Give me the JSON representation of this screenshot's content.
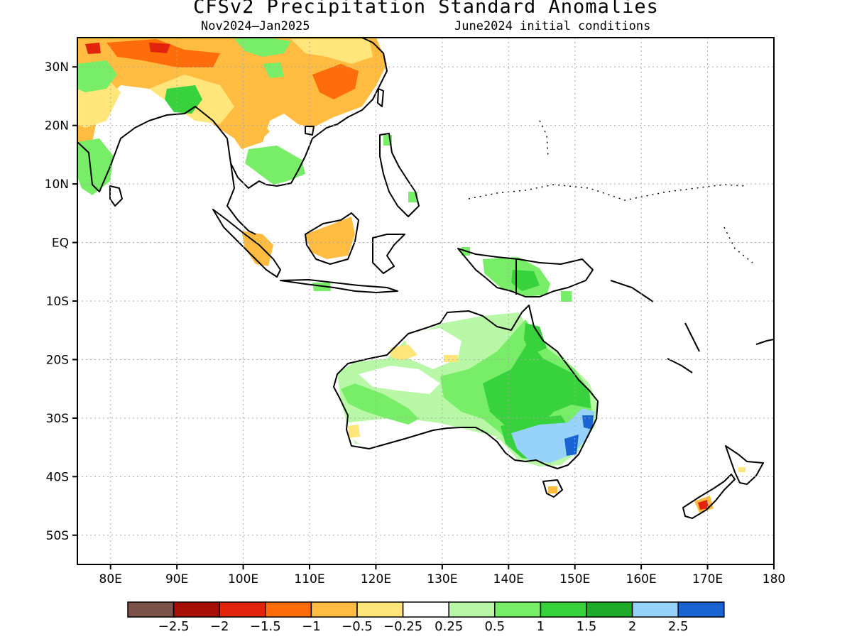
{
  "title": "CFSv2 Precipitation Standard Anomalies",
  "period": "Nov2024–Jan2025",
  "initial_conditions": "June2024 initial conditions",
  "axes": {
    "lon_range": [
      75,
      180
    ],
    "lat_range": [
      -55,
      35
    ],
    "lon_ticks": [
      "80E",
      "90E",
      "100E",
      "110E",
      "120E",
      "130E",
      "140E",
      "150E",
      "160E",
      "170E",
      "180"
    ],
    "lat_ticks": [
      "30N",
      "20N",
      "10N",
      "EQ",
      "10S",
      "20S",
      "30S",
      "40S",
      "50S"
    ],
    "gridlines": true
  },
  "legend": {
    "colors": [
      "#7a5248",
      "#a50f05",
      "#e3240c",
      "#ff6c0a",
      "#ffbc40",
      "#ffe57a",
      "#ffffff",
      "#b7f7a6",
      "#78ee68",
      "#37d23c",
      "#1fab2a",
      "#96d2fa",
      "#1a63d2"
    ],
    "labels": [
      "−2.5",
      "−2",
      "−1.5",
      "−1",
      "−0.5",
      "−0.25",
      "0.25",
      "0.5",
      "1",
      "1.5",
      "2",
      "2.5"
    ]
  }
}
